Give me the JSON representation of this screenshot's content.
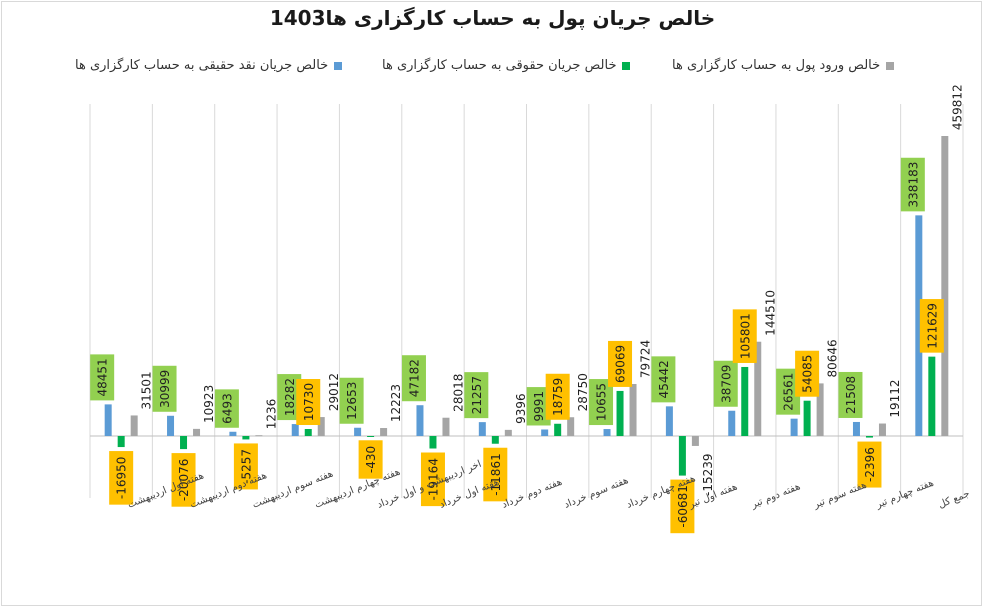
{
  "chart_data": {
    "type": "bar",
    "title": "خالص جریان پول به حساب کارگزاری ها1403",
    "categories": [
      "هفته اول اردیبهشت",
      "هفته دوم اردیبهشت",
      "هفته سوم اردیبهشت",
      "هفته چهارم اردیبهشت",
      "اخر اردیبهشت و اول خرداد",
      "هفته اول خرداد",
      "هفته دوم خرداد",
      "هفته سوم خرداد",
      "هفته چهارم خرداد",
      "هفته اول تیر",
      "هفته دوم تیر",
      "هفته سوم تیر",
      "هفته چهارم تیر",
      "جمع کل"
    ],
    "series": [
      {
        "name": "خالص جریان نقد حقیقی به حساب کارگزاری ها",
        "color": "#5b9bd5",
        "values": [
          48451,
          30999,
          6493,
          18282,
          12653,
          47182,
          21257,
          9991,
          10655,
          45442,
          38709,
          26561,
          21508,
          338183
        ]
      },
      {
        "name": "خالص جریان حقوقی به حساب کارگزاری ها",
        "color": "#00b050",
        "values": [
          -16950,
          -20076,
          -5257,
          10730,
          -430,
          -19164,
          -11861,
          18759,
          69069,
          -60681,
          105801,
          54085,
          -2396,
          121629
        ]
      },
      {
        "name": "خالص ورود پول به حساب کارگزاری ها",
        "color": "#a5a5a5",
        "values": [
          31501,
          10923,
          1236,
          29012,
          12223,
          28018,
          9396,
          28750,
          79724,
          -15239,
          144510,
          80646,
          19112,
          459812
        ]
      }
    ],
    "label_colors": {
      "positive_box": "#92d050",
      "negative_box": "#ffc000"
    },
    "legend_position": "top",
    "grid": {
      "vertical_category_lines": true,
      "horizontal": false
    },
    "ylim": [
      -100000,
      460000
    ]
  }
}
